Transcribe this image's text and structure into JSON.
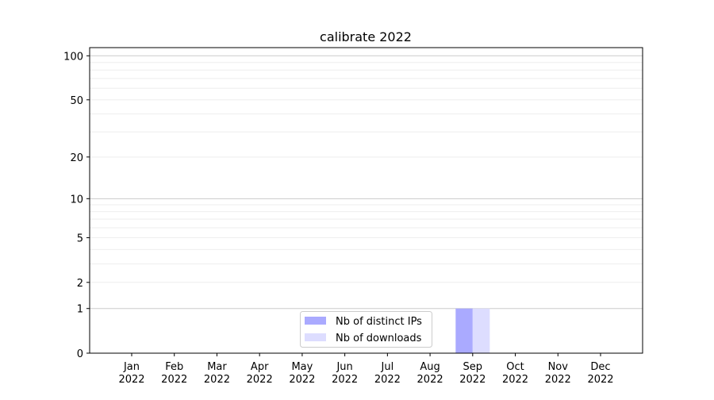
{
  "chart_data": {
    "type": "bar",
    "title": "calibrate 2022",
    "xlabel": "",
    "ylabel": "",
    "yscale": "log(1+y)",
    "ylim": [
      0,
      110
    ],
    "yticks": [
      0,
      1,
      2,
      5,
      10,
      20,
      50,
      100
    ],
    "ytick_labels": [
      "0",
      "1",
      "2",
      "5",
      "10",
      "20",
      "50",
      "100"
    ],
    "minor_grid": [
      3,
      4,
      6,
      7,
      8,
      9,
      30,
      40,
      60,
      70,
      80,
      90
    ],
    "major_grid": [
      1,
      10,
      100
    ],
    "grid": true,
    "categories": [
      [
        "Jan",
        "2022"
      ],
      [
        "Feb",
        "2022"
      ],
      [
        "Mar",
        "2022"
      ],
      [
        "Apr",
        "2022"
      ],
      [
        "May",
        "2022"
      ],
      [
        "Jun",
        "2022"
      ],
      [
        "Jul",
        "2022"
      ],
      [
        "Aug",
        "2022"
      ],
      [
        "Sep",
        "2022"
      ],
      [
        "Oct",
        "2022"
      ],
      [
        "Nov",
        "2022"
      ],
      [
        "Dec",
        "2022"
      ]
    ],
    "series": [
      {
        "name": "Nb of distinct IPs",
        "color": "#aaaaff",
        "values": [
          0,
          0,
          0,
          0,
          0,
          0,
          0,
          0,
          1,
          0,
          0,
          0
        ]
      },
      {
        "name": "Nb of downloads",
        "color": "#ddddff",
        "values": [
          0,
          0,
          0,
          0,
          0,
          0,
          0,
          0,
          1,
          0,
          0,
          0
        ]
      }
    ],
    "legend_position": "lower-center"
  }
}
